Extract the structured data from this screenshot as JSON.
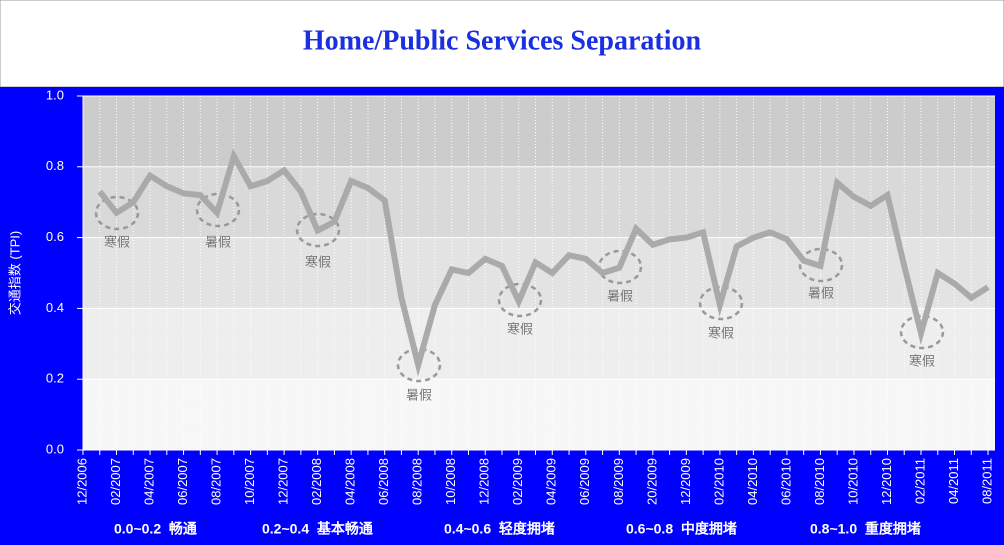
{
  "chart_data": {
    "type": "line",
    "title": "Home/Public Services Separation",
    "ylabel": "交通指数 (TPI)",
    "categories": [
      "12/2006",
      null,
      "02/2007",
      null,
      "04/2007",
      null,
      "06/2007",
      null,
      "08/2007",
      null,
      "10/2007",
      null,
      "12/2007",
      null,
      "02/2008",
      null,
      "04/2008",
      null,
      "06/2008",
      null,
      "08/2008",
      null,
      "10/2008",
      null,
      "12/2008",
      null,
      "02/2009",
      null,
      "04/2009",
      null,
      "06/2009",
      null,
      "08/2009",
      null,
      "20/2009",
      null,
      "12/2009",
      null,
      "02/2010",
      null,
      "04/2010",
      null,
      "06/2010",
      null,
      "08/2010",
      null,
      "10/2010",
      null,
      "12/2010",
      null,
      "02/2011",
      null,
      "04/2011",
      null,
      "08/2011"
    ],
    "series": [
      {
        "name": "TPI",
        "color": "#aaaaaa",
        "values": [
          null,
          0.73,
          0.67,
          0.7,
          0.775,
          0.745,
          0.725,
          0.72,
          0.67,
          0.83,
          0.745,
          0.76,
          0.79,
          0.73,
          0.62,
          0.645,
          0.76,
          0.74,
          0.705,
          0.43,
          0.24,
          0.41,
          0.51,
          0.5,
          0.54,
          0.52,
          0.42,
          0.53,
          0.5,
          0.55,
          0.54,
          0.5,
          0.515,
          0.625,
          0.58,
          0.595,
          0.6,
          0.615,
          0.41,
          0.575,
          0.6,
          0.615,
          0.595,
          0.535,
          0.52,
          0.755,
          0.715,
          0.69,
          0.72,
          0.52,
          0.33,
          0.5,
          0.47,
          0.43,
          0.46
        ]
      }
    ],
    "ylim": [
      0,
      1
    ],
    "yticks": [
      {
        "value": 0,
        "label": "0.0"
      },
      0.2,
      0.4,
      0.6,
      0.8,
      {
        "value": 1,
        "label": "1.0"
      }
    ],
    "grid": true,
    "bands": [
      {
        "label": "0.0~0.2  畅通",
        "from": 0,
        "to": 0.2,
        "color": "#f7f7f7"
      },
      {
        "label": "0.2~0.4  基本畅通",
        "from": 0.2,
        "to": 0.4,
        "color": "#eeeeee"
      },
      {
        "label": "0.4~0.6  轻度拥堵",
        "from": 0.4,
        "to": 0.6,
        "color": "#e3e3e3"
      },
      {
        "label": "0.6~0.8  中度拥堵",
        "from": 0.6,
        "to": 0.8,
        "color": "#d9d9d9"
      },
      {
        "label": "0.8~1.0  重度拥堵",
        "from": 0.8,
        "to": 1,
        "color": "#cccccc"
      }
    ],
    "annotations": [
      "寒假",
      "暑假",
      "寒假",
      "暑假",
      "寒假",
      "暑假",
      "寒假",
      "暑假",
      "寒假"
    ]
  }
}
